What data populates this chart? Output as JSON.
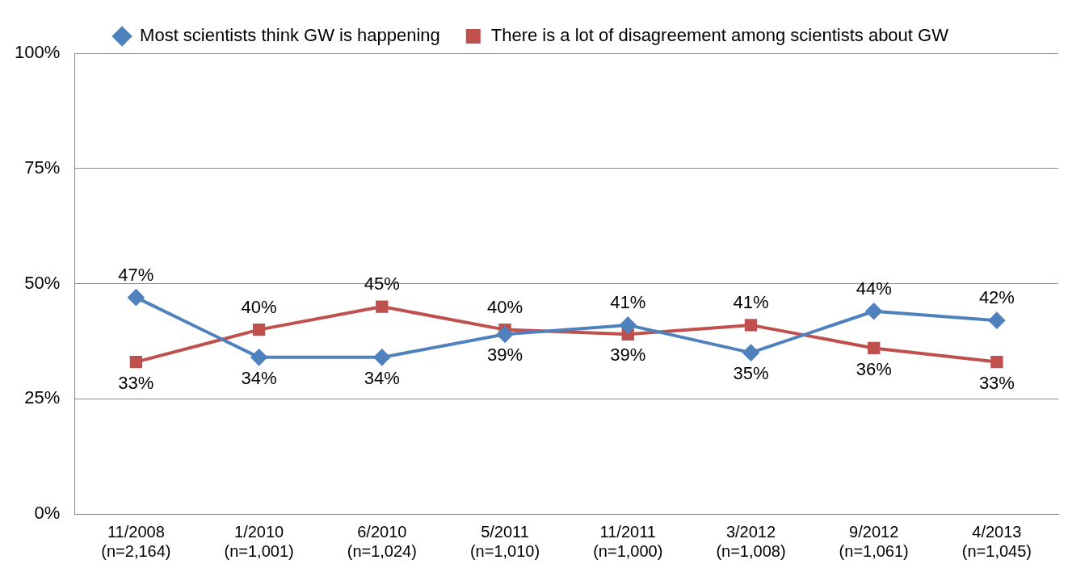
{
  "chart_data": {
    "type": "line",
    "categories": [
      "11/2008\n(n=2,164)",
      "1/2010\n(n=1,001)",
      "6/2010\n(n=1,024)",
      "5/2011\n(n=1,010)",
      "11/2011\n(n=1,000)",
      "3/2012\n(n=1,008)",
      "9/2012\n(n=1,061)",
      "4/2013\n(n=1,045)"
    ],
    "series": [
      {
        "name": "Most scientists think GW is happening",
        "color": "#4f81bd",
        "marker": "diamond",
        "values": [
          47,
          34,
          34,
          39,
          41,
          35,
          44,
          42
        ],
        "value_labels": [
          "47%",
          "34%",
          "34%",
          "39%",
          "41%",
          "35%",
          "44%",
          "42%"
        ]
      },
      {
        "name": "There is a lot of disagreement among scientists about GW",
        "color": "#c0504d",
        "marker": "square",
        "values": [
          33,
          40,
          45,
          40,
          39,
          41,
          36,
          33
        ],
        "value_labels": [
          "33%",
          "40%",
          "45%",
          "40%",
          "39%",
          "41%",
          "36%",
          "33%"
        ]
      }
    ],
    "ylim": [
      0,
      100
    ],
    "yticks": [
      {
        "value": 0,
        "label": "0%"
      },
      {
        "value": 25,
        "label": "25%"
      },
      {
        "value": 50,
        "label": "50%"
      },
      {
        "value": 75,
        "label": "75%"
      },
      {
        "value": 100,
        "label": "100%"
      }
    ],
    "grid": "y",
    "legend": "top"
  }
}
